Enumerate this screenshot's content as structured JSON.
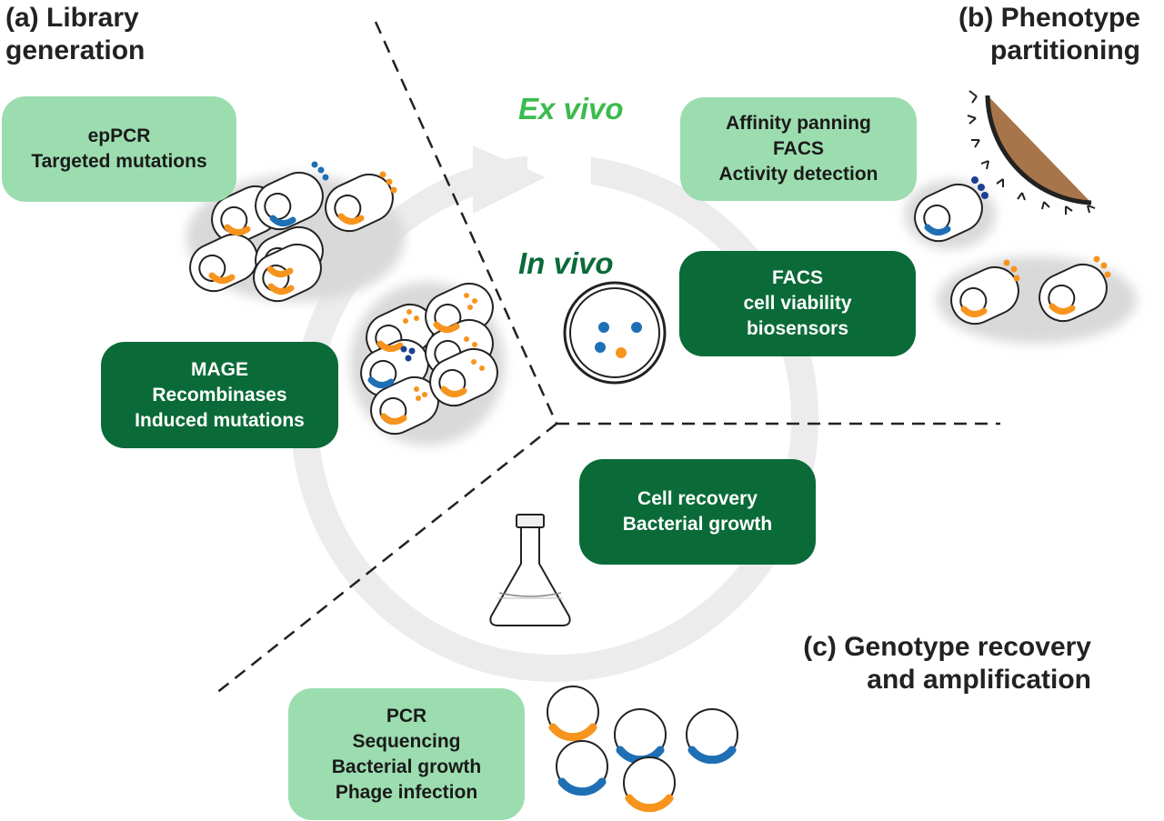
{
  "colors": {
    "light_box": "#9cddb0",
    "dark_box": "#0a6b38",
    "ex_vivo": "#3cbb4e",
    "in_vivo": "#0a6b38",
    "cycle_arrow": "#ececec",
    "orange": "#f7941d",
    "blue": "#1f6fb5",
    "dark_blue": "#1c3f94",
    "bead_brown": "#a8754a"
  },
  "sections": {
    "library": {
      "label_line1": "(a) Library",
      "label_line2": "generation"
    },
    "phenotype": {
      "label_line1": "(b) Phenotype",
      "label_line2": "partitioning"
    },
    "genotype": {
      "label_line1": "(c) Genotype recovery",
      "label_line2": "and amplification"
    }
  },
  "zones": {
    "ex_vivo": "Ex vivo",
    "in_vivo": "In vivo"
  },
  "boxes": {
    "library_ex_vivo": {
      "lines": [
        "epPCR",
        "Targeted mutations"
      ]
    },
    "library_in_vivo": {
      "lines": [
        "MAGE",
        "Recombinases",
        "Induced mutations"
      ]
    },
    "phenotype_ex_vivo": {
      "lines": [
        "Affinity panning",
        "FACS",
        "Activity detection"
      ]
    },
    "phenotype_in_vivo": {
      "lines": [
        "FACS",
        "cell viability",
        "biosensors"
      ]
    },
    "recovery_in_vivo": {
      "lines": [
        "Cell recovery",
        "Bacterial growth"
      ]
    },
    "recovery_ex_vivo": {
      "lines": [
        "PCR",
        "Sequencing",
        "Bacterial growth",
        "Phage infection"
      ]
    }
  },
  "icons": {
    "cycle": "cycle-arrow-icon",
    "library_cells": "bacterial-cell-cluster-icon",
    "in_vivo_cells": "bacterial-cell-cluster-icon",
    "bead": "affinity-bead-icon",
    "petri": "petri-dish-icon",
    "flask": "erlenmeyer-flask-icon",
    "plasmids": "plasmid-icon"
  }
}
